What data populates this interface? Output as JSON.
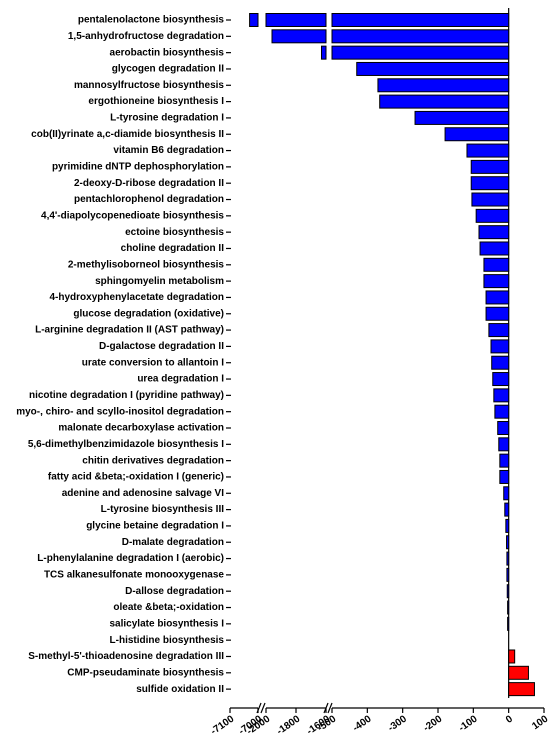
{
  "chart_data": {
    "type": "bar",
    "orientation": "horizontal",
    "categories": [
      "pentalenolactone biosynthesis",
      "1,5-anhydrofructose degradation",
      "aerobactin biosynthesis",
      "glycogen degradation II",
      "mannosylfructose biosynthesis",
      "ergothioneine biosynthesis I",
      "L-tyrosine degradation I",
      "cob(II)yrinate a,c-diamide biosynthesis II",
      "vitamin B6 degradation",
      "pyrimidine dNTP dephosphorylation",
      "2-deoxy-D-ribose degradation II",
      "pentachlorophenol degradation",
      "4,4'-diapolycopenedioate biosynthesis",
      "ectoine biosynthesis",
      "choline degradation II",
      "2-methylisoborneol biosynthesis",
      "sphingomyelin metabolism",
      "4-hydroxyphenylacetate degradation",
      "glucose degradation (oxidative)",
      "L-arginine degradation II (AST pathway)",
      "D-galactose degradation II",
      "urate conversion to allantoin I",
      "urea degradation I",
      "nicotine degradation I (pyridine pathway)",
      "myo-, chiro- and scyllo-inositol degradation",
      "malonate decarboxylase activation",
      "5,6-dimethylbenzimidazole biosynthesis I",
      "chitin derivatives degradation",
      "fatty acid &beta;-oxidation I (generic)",
      "adenine and adenosine salvage VI",
      "L-tyrosine biosynthesis III",
      "glycine betaine degradation I",
      "D-malate degradation",
      "L-phenylalanine degradation I (aerobic)",
      "TCS alkanesulfonate monooxygenase",
      "D-allose degradation",
      "oleate &beta;-oxidation",
      "salicylate biosynthesis I",
      "L-histidine biosynthesis",
      "S-methyl-5'-thioadenosine degradation III",
      "CMP-pseudaminate biosynthesis",
      "sulfide oxidation II"
    ],
    "values": [
      -7030,
      -1960,
      -1630,
      -430,
      -370,
      -365,
      -265,
      -180,
      -118,
      -106,
      -106,
      -104,
      -92,
      -84,
      -81,
      -70,
      -70,
      -64,
      -64,
      -56,
      -50,
      -48,
      -45,
      -42,
      -39,
      -31,
      -28,
      -25,
      -25,
      -14,
      -11,
      -8,
      -6,
      -5,
      -5,
      -4,
      -3,
      -3,
      0,
      17,
      56,
      73
    ],
    "negative_color": "#0000ff",
    "positive_color": "#ff0000",
    "x_segments": [
      {
        "xlim": [
          -7100,
          -7000
        ],
        "xticks": [
          -7100,
          -7000
        ]
      },
      {
        "xlim": [
          -2000,
          -1600
        ],
        "xticks": [
          -2000,
          -1800,
          -1600
        ]
      },
      {
        "xlim": [
          -500,
          100
        ],
        "xticks": [
          -500,
          -400,
          -300,
          -200,
          -100,
          0,
          100
        ]
      }
    ]
  }
}
